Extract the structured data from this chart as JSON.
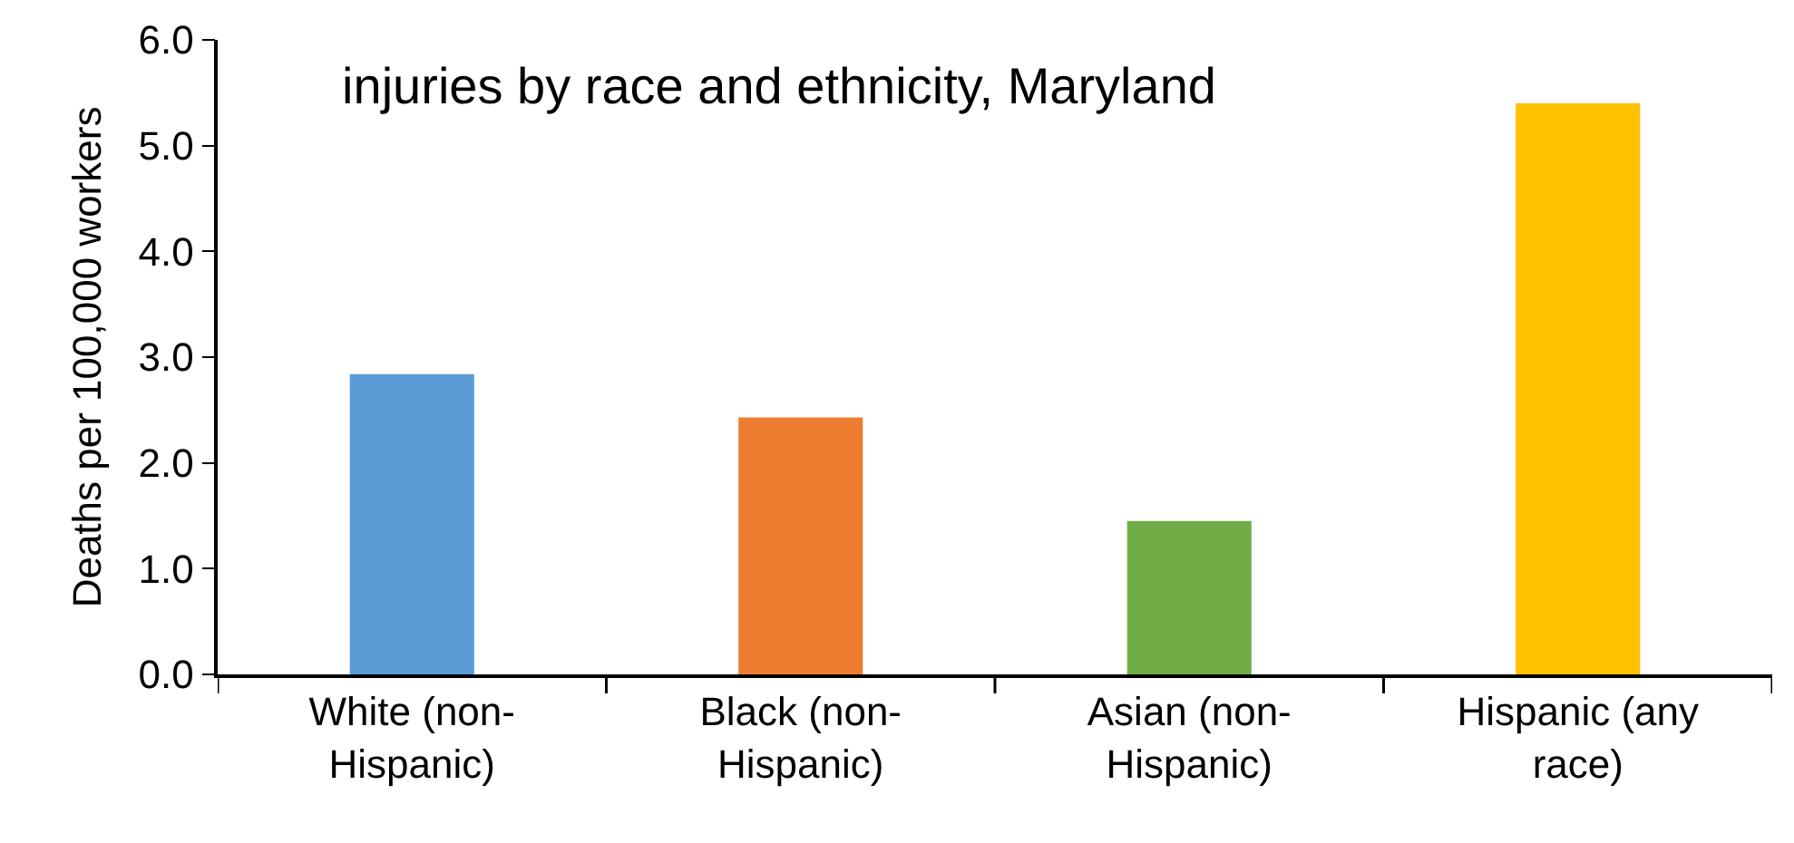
{
  "chart_data": {
    "type": "bar",
    "title": "injuries by race and ethnicity, Maryland",
    "ylabel": "Deaths per 100,000 workers",
    "categories": [
      "White (non-Hispanic)",
      "Black (non-Hispanic)",
      "Asian (non-Hispanic)",
      "Hispanic (any race)"
    ],
    "values": [
      2.84,
      2.43,
      1.45,
      5.4
    ],
    "colors": [
      "#5b9bd5",
      "#ed7d31",
      "#70ad47",
      "#ffc000"
    ],
    "ylim": [
      0,
      6
    ],
    "yticks": [
      {
        "value": 0,
        "label": "0.0"
      },
      {
        "value": 1,
        "label": "1.0"
      },
      {
        "value": 2,
        "label": "2.0"
      },
      {
        "value": 3,
        "label": "3.0"
      },
      {
        "value": 4,
        "label": "4.0"
      },
      {
        "value": 5,
        "label": "5.0"
      },
      {
        "value": 6,
        "label": "6.0"
      }
    ],
    "grid": false
  }
}
